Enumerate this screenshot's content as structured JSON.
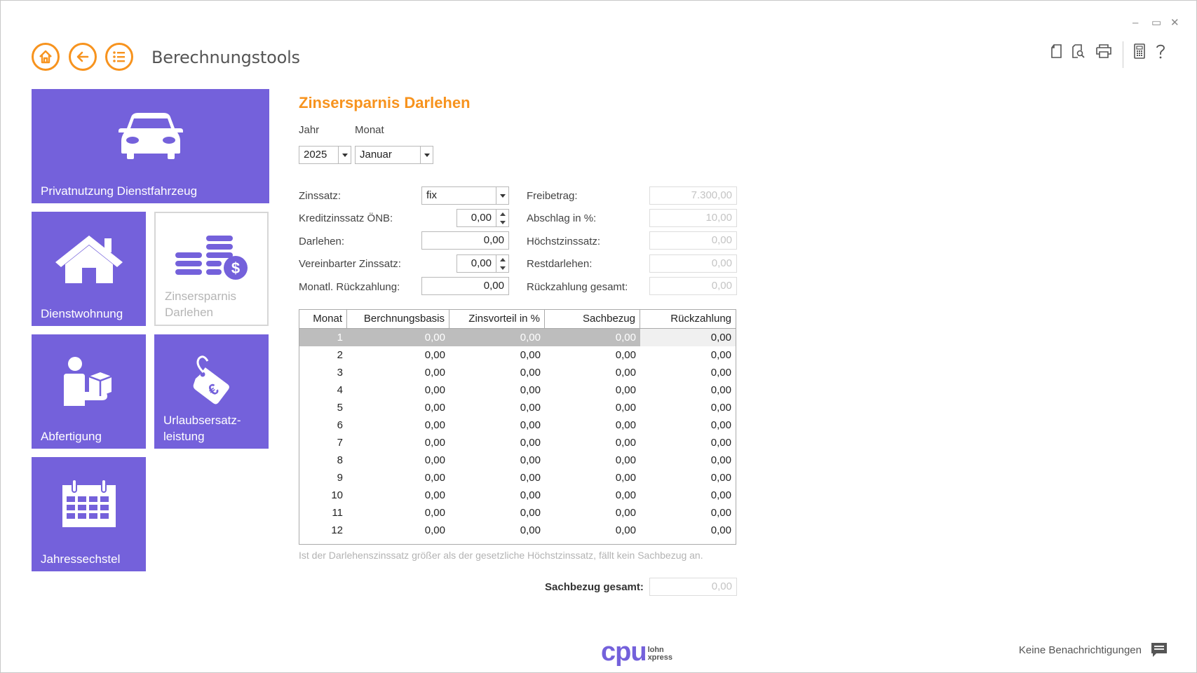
{
  "window": {
    "controls": {
      "minimize": "–",
      "maximize": "▭",
      "close": "✕"
    }
  },
  "header": {
    "title": "Berechnungstools",
    "nav": {
      "home_icon": "home-icon",
      "back_icon": "back-arrow-icon",
      "menu_icon": "list-icon"
    },
    "toolbar_icons": [
      "document-icon",
      "search-document-icon",
      "print-icon",
      "calculator-icon",
      "help-icon"
    ],
    "accent_color": "#f7931e"
  },
  "tiles": [
    {
      "label": "Privatnutzung Dienstfahrzeug",
      "icon": "car-icon",
      "active": false
    },
    {
      "label": "Dienstwohnung",
      "icon": "house-icon",
      "active": false
    },
    {
      "label": "Zinsersparnis Darlehen",
      "icon": "coins-dollar-icon",
      "active": true
    },
    {
      "label": "Abfertigung",
      "icon": "person-box-icon",
      "active": false
    },
    {
      "label": "Urlaubsersatz-leistung",
      "icon": "euro-tag-icon",
      "active": false
    },
    {
      "label": "Jahressechstel",
      "icon": "calendar-icon",
      "active": false
    }
  ],
  "tile_color": "#7461db",
  "form": {
    "title": "Zinsersparnis Darlehen",
    "year_label": "Jahr",
    "month_label": "Monat",
    "year_value": "2025",
    "month_value": "Januar",
    "left_fields": [
      {
        "label": "Zinssatz:",
        "value": "fix",
        "kind": "combo"
      },
      {
        "label": "Kreditzinssatz ÖNB:",
        "value": "0,00",
        "kind": "spin"
      },
      {
        "label": "Darlehen:",
        "value": "0,00",
        "kind": "text"
      },
      {
        "label": "Vereinbarter Zinssatz:",
        "value": "0,00",
        "kind": "spin"
      },
      {
        "label": "Monatl. Rückzahlung:",
        "value": "0,00",
        "kind": "text"
      }
    ],
    "right_fields": [
      {
        "label": "Freibetrag:",
        "value": "7.300,00"
      },
      {
        "label": "Abschlag in %:",
        "value": "10,00"
      },
      {
        "label": "Höchstzinssatz:",
        "value": "0,00"
      },
      {
        "label": "Restdarlehen:",
        "value": "0,00"
      },
      {
        "label": "Rückzahlung gesamt:",
        "value": "0,00"
      }
    ]
  },
  "table": {
    "columns": [
      "Monat",
      "Berchnungsbasis",
      "Zinsvorteil in %",
      "Sachbezug",
      "Rückzahlung"
    ],
    "rows": [
      [
        "1",
        "0,00",
        "0,00",
        "0,00",
        "0,00"
      ],
      [
        "2",
        "0,00",
        "0,00",
        "0,00",
        "0,00"
      ],
      [
        "3",
        "0,00",
        "0,00",
        "0,00",
        "0,00"
      ],
      [
        "4",
        "0,00",
        "0,00",
        "0,00",
        "0,00"
      ],
      [
        "5",
        "0,00",
        "0,00",
        "0,00",
        "0,00"
      ],
      [
        "6",
        "0,00",
        "0,00",
        "0,00",
        "0,00"
      ],
      [
        "7",
        "0,00",
        "0,00",
        "0,00",
        "0,00"
      ],
      [
        "8",
        "0,00",
        "0,00",
        "0,00",
        "0,00"
      ],
      [
        "9",
        "0,00",
        "0,00",
        "0,00",
        "0,00"
      ],
      [
        "10",
        "0,00",
        "0,00",
        "0,00",
        "0,00"
      ],
      [
        "11",
        "0,00",
        "0,00",
        "0,00",
        "0,00"
      ],
      [
        "12",
        "0,00",
        "0,00",
        "0,00",
        "0,00"
      ]
    ]
  },
  "note": "Ist der Darlehenszinssatz größer als der gesetzliche Höchstzinssatz, fällt kein Sachbezug an.",
  "total": {
    "label": "Sachbezug gesamt:",
    "value": "0,00"
  },
  "footer": {
    "logo_main": "cpu",
    "logo_sub1": "lohn",
    "logo_sub2": "xpress",
    "notification_text": "Keine Benachrichtigungen",
    "notification_icon": "chat-message-icon"
  }
}
